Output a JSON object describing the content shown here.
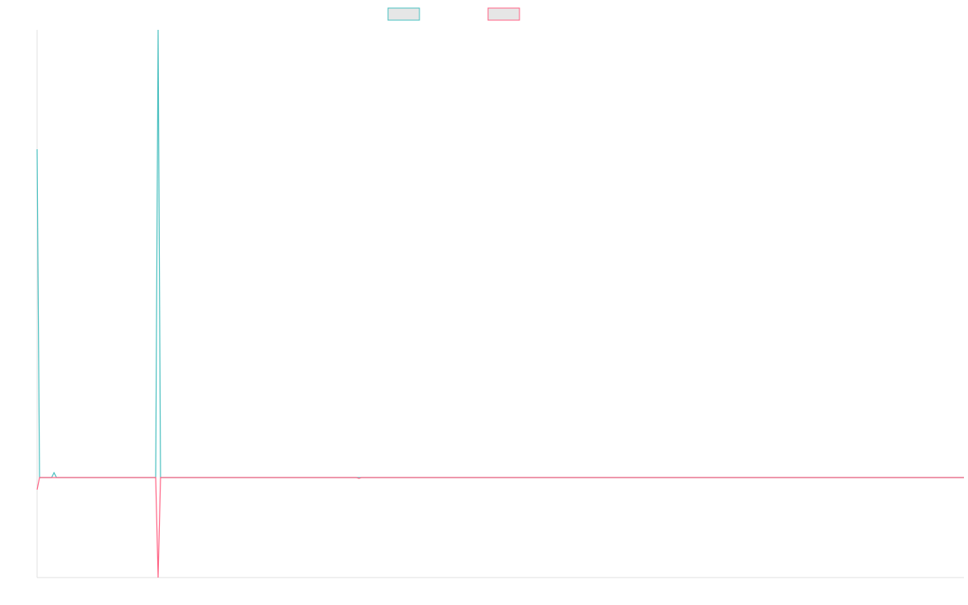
{
  "chart_data": {
    "type": "line",
    "x": [
      0,
      1,
      6,
      7,
      8,
      49,
      50,
      51,
      132,
      133,
      134,
      383
    ],
    "series": [
      {
        "color": "#4bc0c0",
        "values": [
          4.07,
          0,
          0,
          0.06,
          0,
          0,
          5.55,
          0,
          0,
          0,
          0,
          0
        ]
      },
      {
        "color": "#ff6384",
        "values": [
          -0.15,
          0,
          0,
          0,
          0,
          0,
          -1.24,
          0,
          0,
          -0.01,
          0,
          0
        ]
      }
    ],
    "xlim": [
      0,
      383
    ],
    "ylim": [
      -1.24,
      5.55
    ]
  }
}
